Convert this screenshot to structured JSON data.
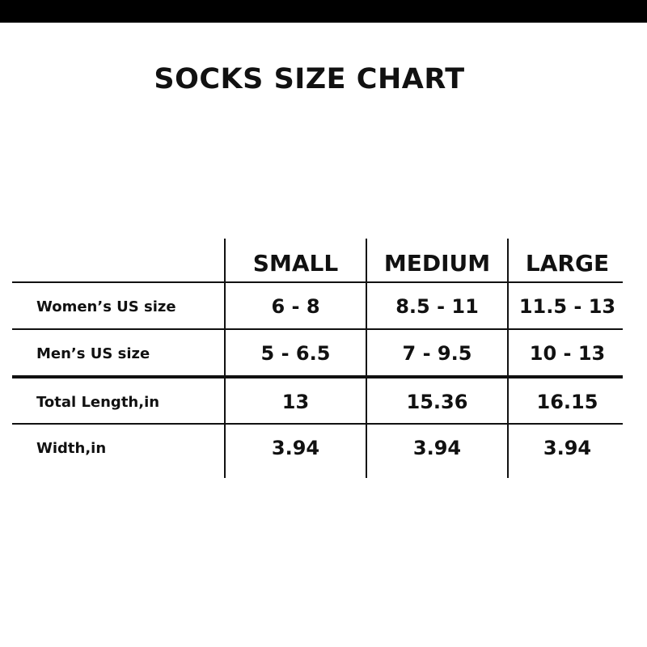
{
  "title": "SOCKS SIZE CHART",
  "columns": [
    "SMALL",
    "MEDIUM",
    "LARGE"
  ],
  "rows": [
    {
      "label": "Women’s US size",
      "values": [
        "6 - 8",
        "8.5 - 11",
        "11.5 - 13"
      ]
    },
    {
      "label": "Men’s US size",
      "values": [
        "5 - 6.5",
        "7 - 9.5",
        "10 - 13"
      ]
    },
    {
      "label": "Total Length,in",
      "values": [
        "13",
        "15.36",
        "16.15"
      ]
    },
    {
      "label": "Width,in",
      "values": [
        "3.94",
        "3.94",
        "3.94"
      ]
    }
  ]
}
